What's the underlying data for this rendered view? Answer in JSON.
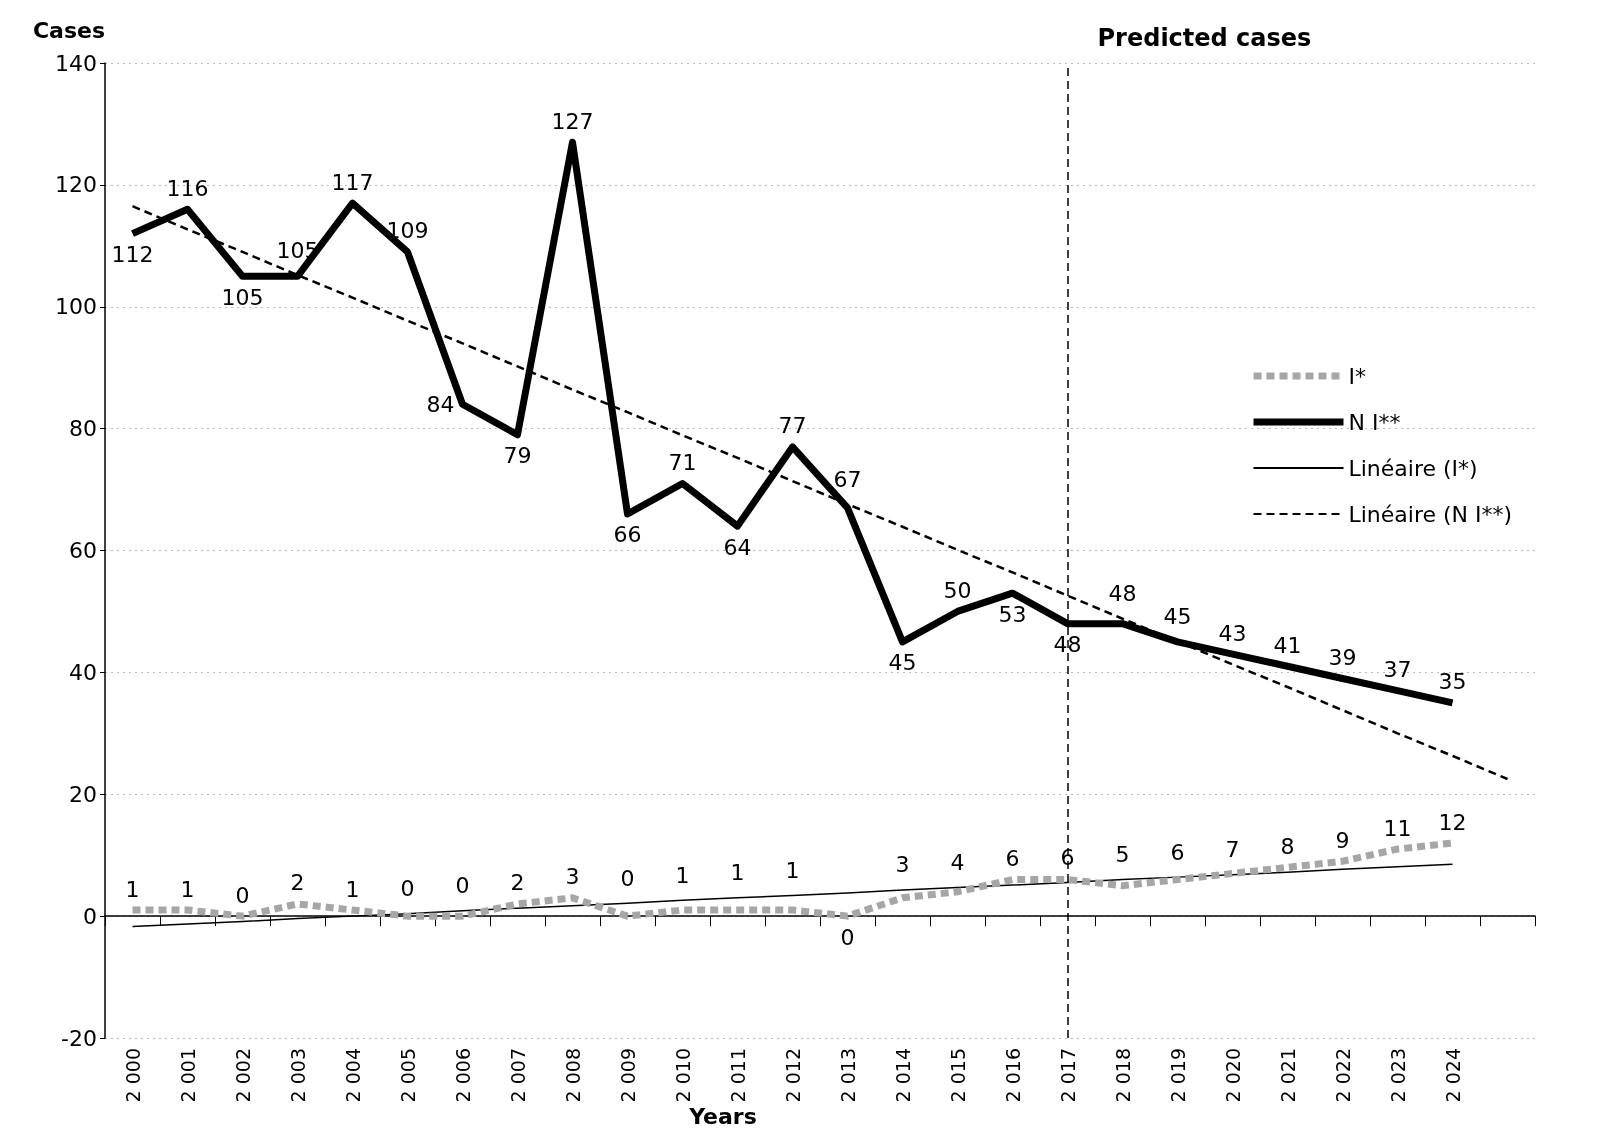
{
  "chart_data": {
    "type": "line",
    "ylabel": "Cases",
    "xlabel": "Years",
    "categories": [
      "2 000",
      "2 001",
      "2 002",
      "2 003",
      "2 004",
      "2 005",
      "2 006",
      "2 007",
      "2 008",
      "2 009",
      "2 010",
      "2 011",
      "2 012",
      "2 013",
      "2 014",
      "2 015",
      "2 016",
      "2 017",
      "2 018",
      "2 019",
      "2 020",
      "2 021",
      "2 022",
      "2 023",
      "2 024",
      null
    ],
    "series": [
      {
        "name": "I*",
        "color": "#a6a6a6",
        "line_style": "dashed",
        "values": [
          1,
          1,
          0,
          2,
          1,
          0,
          0,
          2,
          3,
          0,
          1,
          1,
          1,
          0,
          3,
          4,
          6,
          6,
          5,
          6,
          7,
          8,
          9,
          11,
          12,
          null
        ],
        "value_labels": [
          "1",
          "1",
          "0",
          "2",
          "1",
          "0",
          "0",
          "2",
          "3",
          "0",
          "1",
          "1",
          "1",
          "0",
          "3",
          "4",
          "6",
          "6",
          "5",
          "6",
          "7",
          "8",
          "9",
          "11",
          "12",
          null
        ]
      },
      {
        "name": "N I**",
        "color": "#000000",
        "line_style": "solid",
        "values": [
          112,
          116,
          105,
          105,
          117,
          109,
          84,
          79,
          127,
          66,
          71,
          64,
          77,
          67,
          45,
          50,
          53,
          48,
          48,
          45,
          43,
          41,
          39,
          37,
          35,
          null
        ],
        "value_labels": [
          "112",
          "116",
          "105",
          "105",
          "117",
          "109",
          "84",
          "79",
          "127",
          "66",
          "71",
          "64",
          "77",
          "67",
          "45",
          "50",
          "53",
          "48",
          "48",
          "45",
          "43",
          "41",
          "39",
          "37",
          "35",
          null
        ]
      },
      {
        "name": "Linéaire (I*)",
        "color": "#000000",
        "line_style": "solid",
        "values": [
          -1.7,
          -1.3,
          -0.9,
          -0.4,
          0,
          0.4,
          0.9,
          1.3,
          1.7,
          2.1,
          2.6,
          3,
          3.4,
          3.8,
          4.3,
          4.7,
          5.1,
          5.5,
          6,
          6.4,
          6.8,
          7.2,
          7.7,
          8.1,
          8.5,
          null
        ]
      },
      {
        "name": "Linéaire (N I**)",
        "color": "#000000",
        "line_style": "dashed",
        "values": [
          116.5,
          112.7,
          109,
          105.2,
          101.5,
          97.7,
          94,
          90.2,
          86.4,
          82.7,
          78.9,
          75.2,
          71.4,
          67.6,
          63.9,
          60.1,
          56.4,
          52.6,
          48.8,
          45.1,
          41.3,
          37.6,
          33.8,
          30,
          26.3,
          22.5
        ]
      }
    ],
    "ylim": [
      -20,
      140
    ],
    "yticks": [
      -20,
      0,
      20,
      40,
      60,
      80,
      100,
      120,
      140
    ],
    "grid": "y",
    "legend": "right",
    "marker": "none",
    "ref_lines": [
      {
        "axis": "x",
        "value": "2 017",
        "label": "Predicted cases",
        "color": "#000000",
        "line_style": "dashed"
      }
    ]
  }
}
